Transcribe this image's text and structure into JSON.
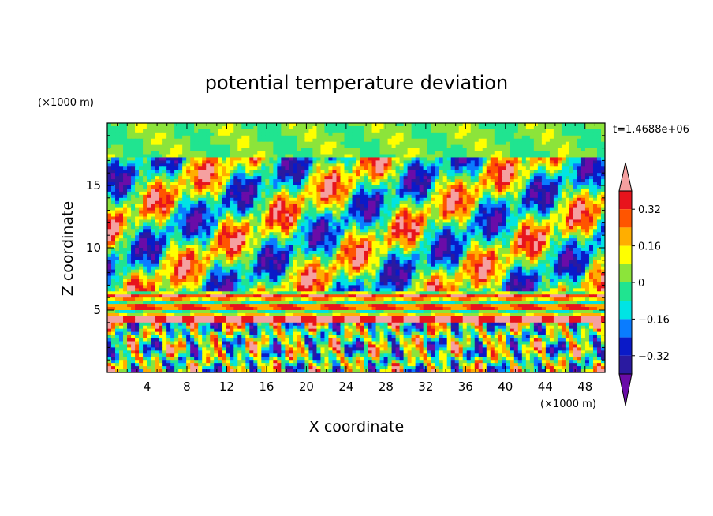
{
  "chart_data": {
    "type": "heatmap",
    "title": "potential temperature deviation",
    "xlabel": "X coordinate",
    "ylabel": "Z coordinate",
    "x_unit": "(×1000 m)",
    "y_unit": "(×1000 m)",
    "time_label": "t=1.4688e+06",
    "x_ticks": [
      "4",
      "8",
      "12",
      "16",
      "20",
      "24",
      "28",
      "32",
      "36",
      "40",
      "44",
      "48"
    ],
    "x_tick_values": [
      4,
      8,
      12,
      16,
      20,
      24,
      28,
      32,
      36,
      40,
      44,
      48
    ],
    "y_ticks": [
      "5",
      "10",
      "15"
    ],
    "y_tick_values": [
      5,
      10,
      15
    ],
    "xlim": [
      0,
      50
    ],
    "ylim": [
      0,
      20
    ],
    "colorbar": {
      "labels": [
        "0.32",
        "0.16",
        "0",
        "−0.16",
        "−0.32"
      ],
      "label_values": [
        0.32,
        0.16,
        0,
        -0.16,
        -0.32
      ],
      "levels": [
        -0.4,
        -0.32,
        -0.24,
        -0.16,
        -0.08,
        0,
        0.08,
        0.16,
        0.24,
        0.32,
        0.4
      ],
      "colors": [
        "#6a0ca8",
        "#2a1aa0",
        "#0a1ac8",
        "#0a7cff",
        "#00e4e4",
        "#20e490",
        "#8ce43a",
        "#ffff00",
        "#ffae00",
        "#ff5500",
        "#e8141c",
        "#f5a0a0"
      ]
    },
    "layers": [
      {
        "z_range": [
          0,
          4
        ],
        "description": "convective cells",
        "dominant_values": [
          -0.4,
          0.4
        ]
      },
      {
        "z_range": [
          4,
          6.5
        ],
        "description": "stable banded layer",
        "dominant_values": [
          0.1,
          0.4
        ]
      },
      {
        "z_range": [
          6.5,
          17
        ],
        "description": "tilted wave patterns",
        "dominant_values": [
          -0.4,
          0.4
        ]
      },
      {
        "z_range": [
          17,
          20
        ],
        "description": "upper layer near zero",
        "dominant_values": [
          -0.1,
          0.1
        ]
      }
    ]
  }
}
